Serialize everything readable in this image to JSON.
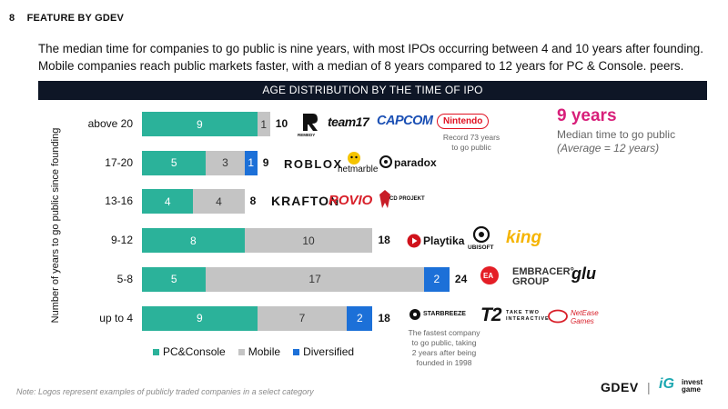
{
  "header": {
    "page_number": "8",
    "section": "FEATURE BY GDEV"
  },
  "intro": {
    "line1": "The median time for companies to go public is nine years, with most IPOs occurring between 4 and 10 years after founding.",
    "line2": "Mobile companies reach public markets faster, with a median of 8 years compared to 12 years for PC & Console. peers."
  },
  "banner": "AGE DISTRIBUTION BY THE TIME OF IPO",
  "colors": {
    "pc": "#2bb29a",
    "mobile": "#c4c4c4",
    "diversified": "#1c70d8",
    "accent": "#d81f7a",
    "banner": "#0e1626"
  },
  "chart_data": {
    "type": "bar",
    "orientation": "horizontal",
    "stacked": true,
    "title": "AGE DISTRIBUTION BY THE TIME OF IPO",
    "ylabel": "Number of years to go public since founding",
    "categories": [
      "above 20",
      "17-20",
      "13-16",
      "9-12",
      "5-8",
      "up to 4"
    ],
    "series": [
      {
        "name": "PC&Console",
        "values": [
          9,
          5,
          4,
          8,
          5,
          9
        ]
      },
      {
        "name": "Mobile",
        "values": [
          1,
          3,
          4,
          10,
          17,
          7
        ]
      },
      {
        "name": "Diversified",
        "values": [
          0,
          1,
          0,
          0,
          2,
          2
        ]
      }
    ],
    "totals": [
      10,
      9,
      8,
      18,
      24,
      18
    ],
    "xlim": [
      0,
      24
    ],
    "legend": "bottom-left"
  },
  "highlight": {
    "value": "9 years",
    "line1": "Median time to go public",
    "line2": "(Average = 12 years)"
  },
  "logos": {
    "above20": [
      "team17",
      "CAPCOM",
      "Nintendo"
    ],
    "row1720": [
      "ROBLOX",
      "netmarble",
      "paradox"
    ],
    "row1316": [
      "KRAFTON",
      "ROVIO",
      "CD PROJEKT"
    ],
    "row912": [
      "Playtika",
      "UBISOFT",
      "king"
    ],
    "row58": [
      "EA",
      "EMBRACER°",
      "GROUP",
      "glu"
    ],
    "row4": [
      "STARBREEZE",
      "T2",
      "TAKE TWO",
      "INTERACTIVE",
      "NetEase",
      "Games"
    ],
    "remedy": "REMEDY"
  },
  "notes": {
    "record_line1": "Record 73 years",
    "record_line2": "to go public",
    "fastest_line1": "The fastest company",
    "fastest_line2": "to go public, taking",
    "fastest_line3": "2 years after being",
    "fastest_line4": "founded in 1998"
  },
  "footer": {
    "note": "Note: Logos represent examples of publicly traded companies in a select category",
    "brand": "GDEV",
    "ig_mark": "iG",
    "ig_line1": "invest",
    "ig_line2": "game"
  }
}
